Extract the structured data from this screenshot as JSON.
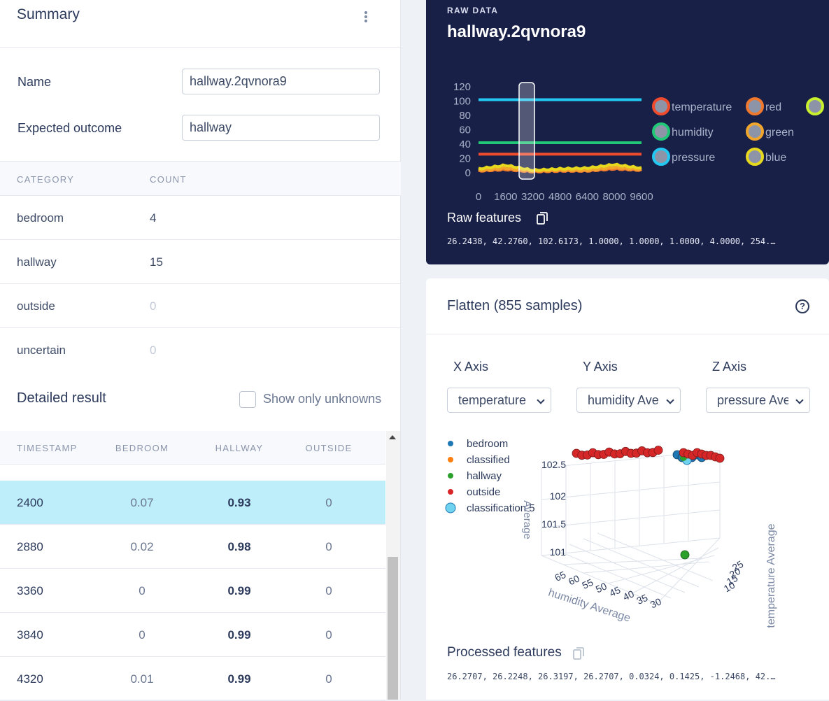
{
  "summary": {
    "title": "Summary",
    "name_label": "Name",
    "name_value": "hallway.2qvnora9",
    "outcome_label": "Expected outcome",
    "outcome_value": "hallway"
  },
  "categories": {
    "headers": [
      "CATEGORY",
      "COUNT"
    ],
    "rows": [
      {
        "category": "bedroom",
        "count": "4"
      },
      {
        "category": "hallway",
        "count": "15"
      },
      {
        "category": "outside",
        "count": "0"
      },
      {
        "category": "uncertain",
        "count": "0"
      }
    ]
  },
  "detailed": {
    "title": "Detailed result",
    "checkbox_label": "Show only unknowns",
    "headers": [
      "TIMESTAMP",
      "BEDROOM",
      "HALLWAY",
      "OUTSIDE"
    ],
    "rows": [
      {
        "timestamp": "2400",
        "bedroom": "0.07",
        "hallway": "0.93",
        "outside": "0",
        "selected": true
      },
      {
        "timestamp": "2880",
        "bedroom": "0.02",
        "hallway": "0.98",
        "outside": "0"
      },
      {
        "timestamp": "3360",
        "bedroom": "0",
        "hallway": "0.99",
        "outside": "0"
      },
      {
        "timestamp": "3840",
        "bedroom": "0",
        "hallway": "0.99",
        "outside": "0"
      },
      {
        "timestamp": "4320",
        "bedroom": "0.01",
        "hallway": "0.99",
        "outside": "0"
      }
    ]
  },
  "raw": {
    "label": "RAW DATA",
    "title": "hallway.2qvnora9",
    "features_title": "Raw features",
    "features_values": "26.2438, 42.2760, 102.6173, 1.0000, 1.0000, 1.0000, 4.0000, 254.…",
    "chart": {
      "y_ticks": [
        "120",
        "100",
        "80",
        "60",
        "40",
        "20",
        "0"
      ],
      "x_ticks": [
        "0",
        "1600",
        "3200",
        "4800",
        "6400",
        "8000",
        "9600"
      ],
      "legend": [
        {
          "name": "temperature",
          "color": "#f04b2d"
        },
        {
          "name": "humidity",
          "color": "#21c878"
        },
        {
          "name": "pressure",
          "color": "#22c8f0"
        },
        {
          "name": "red",
          "color": "#f0782d"
        },
        {
          "name": "green",
          "color": "#f0a62d"
        },
        {
          "name": "blue",
          "color": "#e6d81e"
        }
      ]
    }
  },
  "chart_data": {
    "type": "line",
    "x": [
      0,
      1600,
      3200,
      4800,
      6400,
      8000,
      9600
    ],
    "ylim": [
      0,
      120
    ],
    "series": [
      {
        "name": "temperature",
        "values": [
          26,
          26,
          26,
          26,
          26,
          26,
          26
        ]
      },
      {
        "name": "humidity",
        "values": [
          42,
          42,
          42,
          42,
          42,
          42,
          42
        ]
      },
      {
        "name": "pressure",
        "values": [
          102,
          102,
          102,
          102,
          102,
          102,
          102
        ]
      },
      {
        "name": "red",
        "values": [
          2,
          4,
          1,
          2,
          2,
          5,
          3
        ]
      },
      {
        "name": "green",
        "values": [
          3,
          6,
          2,
          3,
          3,
          7,
          4
        ]
      },
      {
        "name": "blue",
        "values": [
          5,
          10,
          3,
          5,
          6,
          11,
          6
        ]
      }
    ]
  },
  "flatten": {
    "title": "Flatten (855 samples)",
    "x_axis_label": "X Axis",
    "y_axis_label": "Y Axis",
    "z_axis_label": "Z Axis",
    "x_axis_value": "temperature",
    "y_axis_value": "humidity Ave",
    "z_axis_value": "pressure Ave",
    "legend": [
      {
        "name": "bedroom",
        "color": "#1f77b4"
      },
      {
        "name": "classified",
        "color": "#ff7f0e"
      },
      {
        "name": "hallway",
        "color": "#2ca02c"
      },
      {
        "name": "outside",
        "color": "#d62728"
      },
      {
        "name": "classification 5",
        "color": "#6fd3f0"
      }
    ],
    "scatter": {
      "z_ticks": [
        "102.5",
        "102",
        "101.5",
        "101"
      ],
      "z_title": "Average",
      "y_ticks": [
        "65",
        "60",
        "55",
        "50",
        "45",
        "40",
        "35",
        "30"
      ],
      "y_title": "humidity Average",
      "x_ticks": [
        "25",
        "20",
        "15",
        "10"
      ],
      "x_title": "temperature Average"
    },
    "processed_title": "Processed features",
    "processed_values": "26.2707, 26.2248, 26.3197, 26.2707, 0.0324, 0.1425, -1.2468, 42.…"
  }
}
